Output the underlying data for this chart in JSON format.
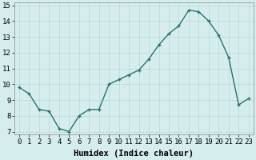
{
  "x": [
    0,
    1,
    2,
    3,
    4,
    5,
    6,
    7,
    8,
    9,
    10,
    11,
    12,
    13,
    14,
    15,
    16,
    17,
    18,
    19,
    20,
    21,
    22,
    23
  ],
  "y": [
    9.8,
    9.4,
    8.4,
    8.3,
    7.2,
    7.0,
    8.0,
    8.4,
    8.4,
    10.0,
    10.3,
    10.6,
    10.9,
    11.6,
    12.5,
    13.2,
    13.7,
    14.7,
    14.6,
    14.0,
    13.1,
    11.7,
    8.7,
    9.1
  ],
  "line_color": "#2d7070",
  "marker_color": "#2d7070",
  "bg_color": "#d5eeed",
  "grid_color": "#b8d8d5",
  "xlabel": "Humidex (Indice chaleur)",
  "xlim": [
    -0.5,
    23.5
  ],
  "ylim": [
    6.8,
    15.2
  ],
  "yticks": [
    7,
    8,
    9,
    10,
    11,
    12,
    13,
    14,
    15
  ],
  "xticks": [
    0,
    1,
    2,
    3,
    4,
    5,
    6,
    7,
    8,
    9,
    10,
    11,
    12,
    13,
    14,
    15,
    16,
    17,
    18,
    19,
    20,
    21,
    22,
    23
  ],
  "tick_fontsize": 6.5,
  "label_fontsize": 7.5,
  "marker_size": 2.5,
  "line_width": 1.0
}
